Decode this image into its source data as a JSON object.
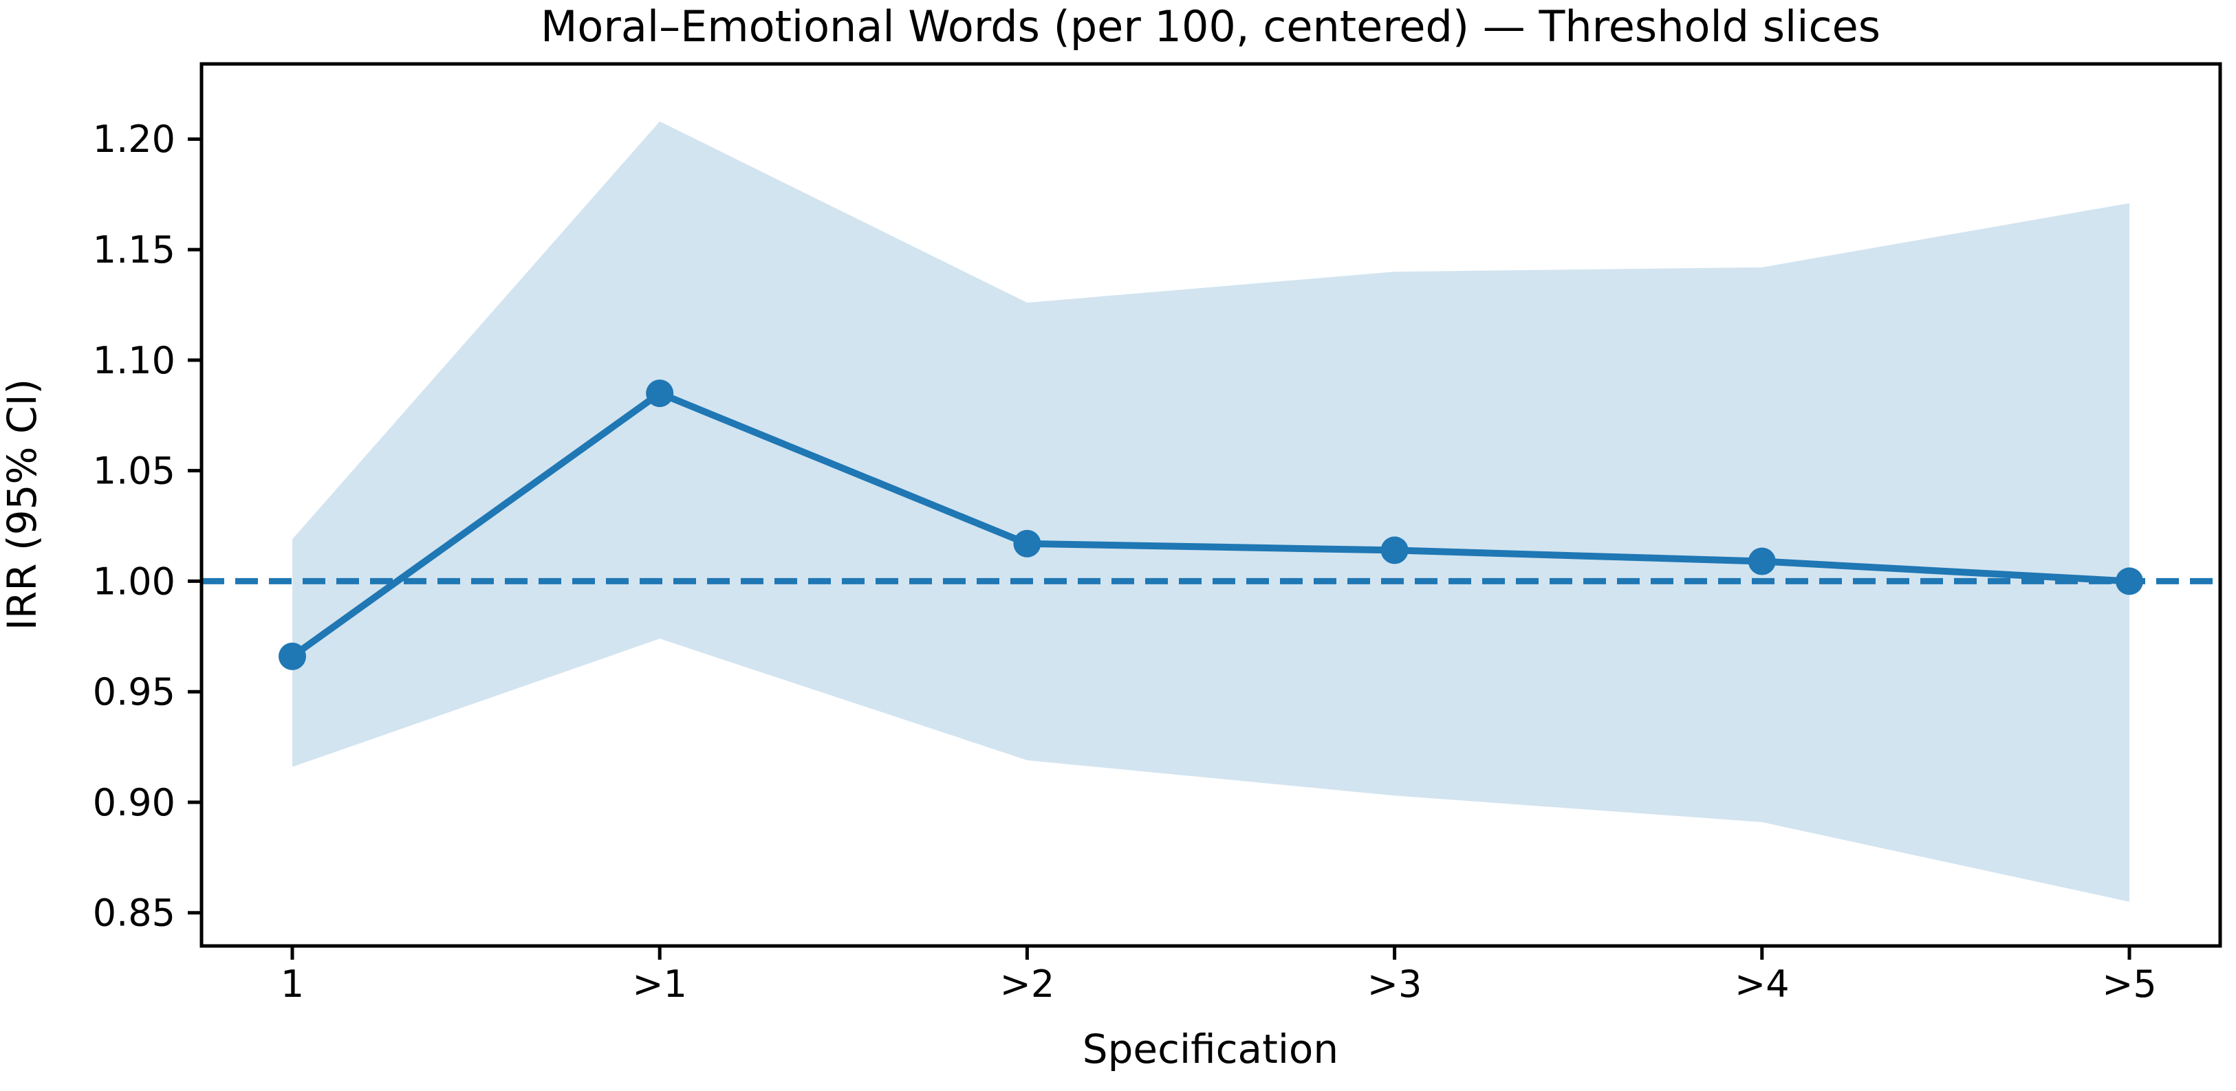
{
  "chart_data": {
    "type": "line",
    "title": "Moral–Emotional Words (per 100, centered) — Threshold slices",
    "xlabel": "Specification",
    "ylabel": "IRR (95% CI)",
    "categories": [
      "1",
      ">1",
      ">2",
      ">3",
      ">4",
      ">5"
    ],
    "series": [
      {
        "name": "IRR",
        "values": [
          0.966,
          1.085,
          1.017,
          1.014,
          1.009,
          1.0
        ]
      },
      {
        "name": "CI upper",
        "values": [
          1.019,
          1.208,
          1.126,
          1.14,
          1.142,
          1.171
        ]
      },
      {
        "name": "CI lower",
        "values": [
          0.916,
          0.974,
          0.919,
          0.903,
          0.891,
          0.855
        ]
      }
    ],
    "reference_line": {
      "y": 1.0,
      "style": "dashed"
    },
    "yticks": [
      0.85,
      0.9,
      0.95,
      1.0,
      1.05,
      1.1,
      1.15,
      1.2
    ],
    "ylim": [
      0.835,
      1.234
    ],
    "grid": false,
    "legend": "none",
    "colors": {
      "line": "#1f77b4",
      "marker": "#1f77b4",
      "band": "#1f77b4",
      "band_opacity": 0.2,
      "reference": "#1f77b4",
      "text": "#000000",
      "spine": "#000000",
      "background": "#ffffff"
    }
  }
}
